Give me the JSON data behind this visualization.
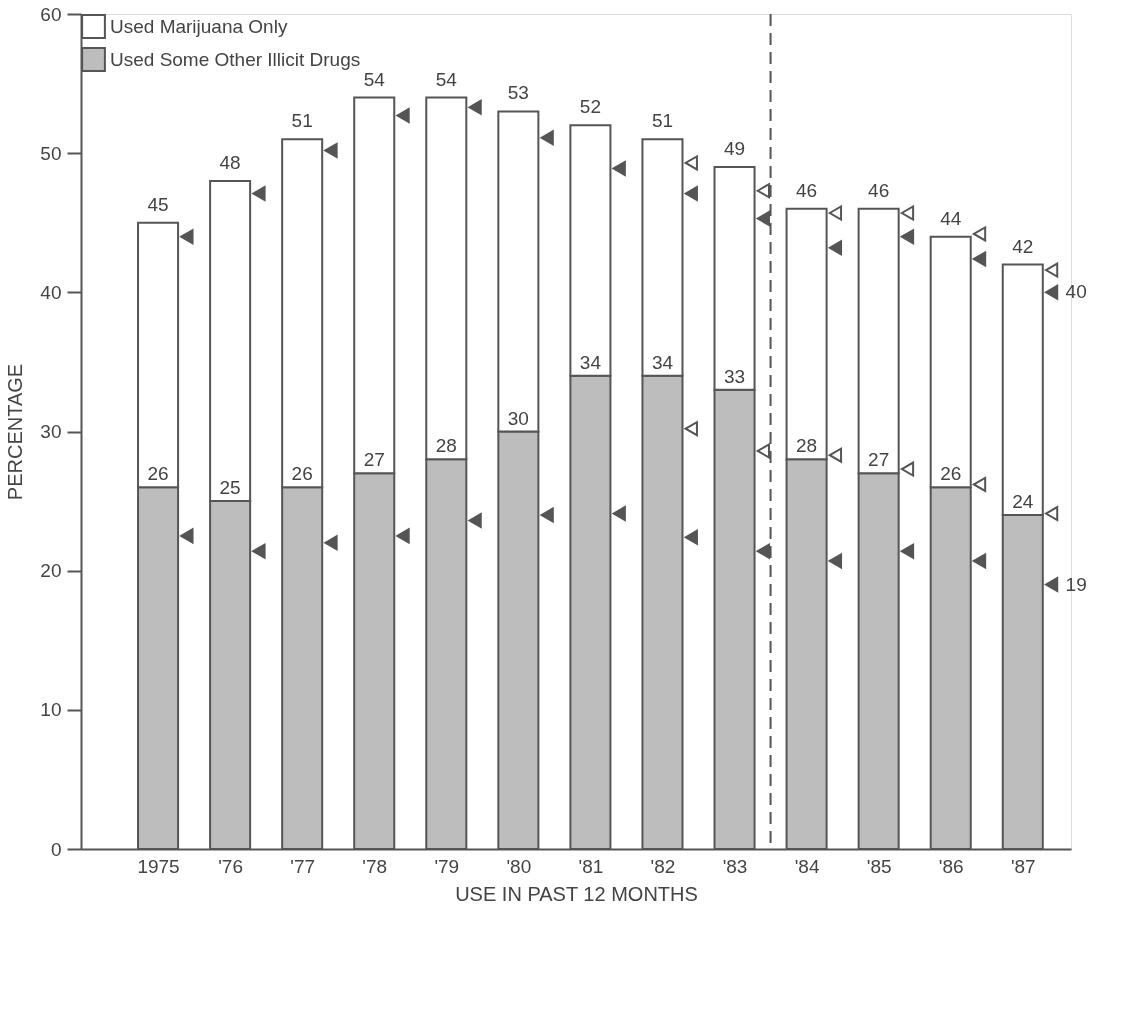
{
  "chart_data": {
    "type": "bar",
    "stacked": true,
    "xlabel": "USE IN PAST 12 MONTHS",
    "ylabel": "PERCENTAGE",
    "x": [
      1975,
      1976,
      1977,
      1978,
      1979,
      1980,
      1981,
      1982,
      1983,
      1984,
      1985,
      1986,
      1987
    ],
    "xlim": [
      1974,
      1987.6
    ],
    "xticks": [
      1975,
      {
        "value": 1976,
        "label": "'76"
      },
      {
        "value": 1977,
        "label": "'77"
      },
      {
        "value": 1978,
        "label": "'78"
      },
      {
        "value": 1979,
        "label": "'79"
      },
      {
        "value": 1980,
        "label": "'80"
      },
      {
        "value": 1981,
        "label": "'81"
      },
      {
        "value": 1982,
        "label": "'82"
      },
      {
        "value": 1983,
        "label": "'83"
      },
      {
        "value": 1984,
        "label": "'84"
      },
      {
        "value": 1985,
        "label": "'85"
      },
      {
        "value": 1986,
        "label": "'86"
      },
      {
        "value": 1987,
        "label": "'87"
      }
    ],
    "ylim": [
      0,
      60
    ],
    "yticks": [
      0,
      10,
      20,
      30,
      40,
      50,
      60
    ],
    "grid": false,
    "legend": "top left",
    "series": [
      {
        "name": "Used Some Other Illicit Drugs",
        "color": "#bdbdbd",
        "values": [
          26,
          25,
          26,
          27,
          28,
          30,
          34,
          34,
          33,
          28,
          27,
          26,
          24
        ],
        "value_labels": [
          "26",
          "25",
          "26",
          "27",
          "28",
          "30",
          "34",
          "34",
          "33",
          "28",
          "27",
          "26",
          "24"
        ]
      },
      {
        "name": "Used Marijuana Only",
        "color": "#ffffff",
        "values": [
          19,
          23,
          25,
          27,
          26,
          23,
          18,
          17,
          16,
          18,
          19,
          18,
          18
        ]
      },
      {
        "type": "scatter",
        "marker": "triangle",
        "color": "#555555",
        "x": [
          1975.4,
          1976.4,
          1977.4,
          1978.4,
          1979.4,
          1980.4,
          1981.4,
          1982.4,
          1983.4,
          1984.4,
          1985.4,
          1986.4,
          1987.4
        ],
        "values": [
          44.0,
          47.1,
          50.2,
          52.7,
          53.3,
          51.1,
          48.9,
          47.1,
          45.3,
          43.2,
          44.0,
          42.4,
          40
        ],
        "value_labels": [
          null,
          null,
          null,
          null,
          null,
          null,
          null,
          null,
          null,
          null,
          null,
          null,
          "40"
        ]
      },
      {
        "type": "scatter",
        "marker": "triangle",
        "color": "#ffffff",
        "x": [
          1982.4,
          1983.4,
          1984.4,
          1985.4,
          1986.4,
          1987.4
        ],
        "values": [
          49.3,
          47.3,
          45.7,
          45.7,
          44.2,
          41.6
        ]
      },
      {
        "type": "scatter",
        "marker": "triangle",
        "color": "#555555",
        "x": [
          1975.4,
          1976.4,
          1977.4,
          1978.4,
          1979.4,
          1980.4,
          1981.4,
          1982.4,
          1983.4,
          1984.4,
          1985.4,
          1986.4,
          1987.4
        ],
        "values": [
          22.5,
          21.4,
          22.0,
          22.5,
          23.6,
          24.0,
          24.1,
          22.4,
          21.4,
          20.7,
          21.4,
          20.7,
          19
        ],
        "value_labels": [
          null,
          null,
          null,
          null,
          null,
          null,
          null,
          null,
          null,
          null,
          null,
          null,
          "19"
        ]
      },
      {
        "type": "scatter",
        "marker": "triangle",
        "color": "#ffffff",
        "x": [
          1982.4,
          1983.4,
          1984.4,
          1985.4,
          1986.4,
          1987.4
        ],
        "values": [
          30.2,
          28.6,
          28.3,
          27.3,
          26.2,
          24.1
        ]
      }
    ],
    "totals": [
      "45",
      "48",
      "51",
      "54",
      "54",
      "53",
      "52",
      "51",
      "49",
      "46",
      "46",
      "44",
      "42"
    ],
    "ref_lines": [
      {
        "axis": "x",
        "value": 1983.5,
        "line_style": "dashed",
        "color": "#555555"
      }
    ]
  }
}
